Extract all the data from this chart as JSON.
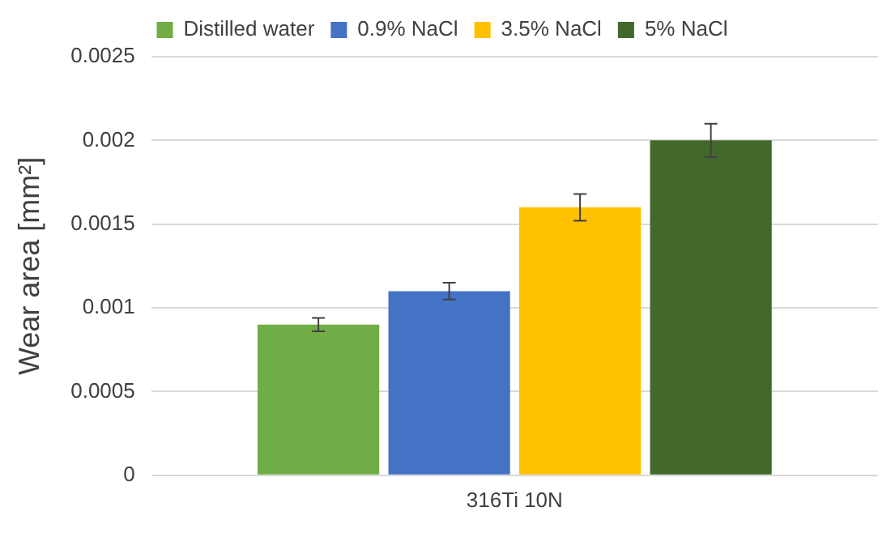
{
  "chart_data": {
    "type": "bar",
    "ylabel": "Wear area [mm²]",
    "categories": [
      "316Ti 10N"
    ],
    "series": [
      {
        "name": "Distilled water",
        "color": "#70ad47",
        "values": [
          0.0009
        ],
        "errors": [
          4e-05
        ]
      },
      {
        "name": "0.9% NaCl",
        "color": "#4472c4",
        "values": [
          0.0011
        ],
        "errors": [
          5e-05
        ]
      },
      {
        "name": "3.5% NaCl",
        "color": "#ffc000",
        "values": [
          0.0016
        ],
        "errors": [
          8e-05
        ]
      },
      {
        "name": "5% NaCl",
        "color": "#43682b",
        "values": [
          0.002
        ],
        "errors": [
          0.0001
        ]
      }
    ],
    "ylim": [
      0,
      0.0025
    ],
    "yticks": [
      0,
      0.0005,
      0.001,
      0.0015,
      0.002,
      0.0025
    ],
    "grid": "y",
    "legend": "top"
  }
}
